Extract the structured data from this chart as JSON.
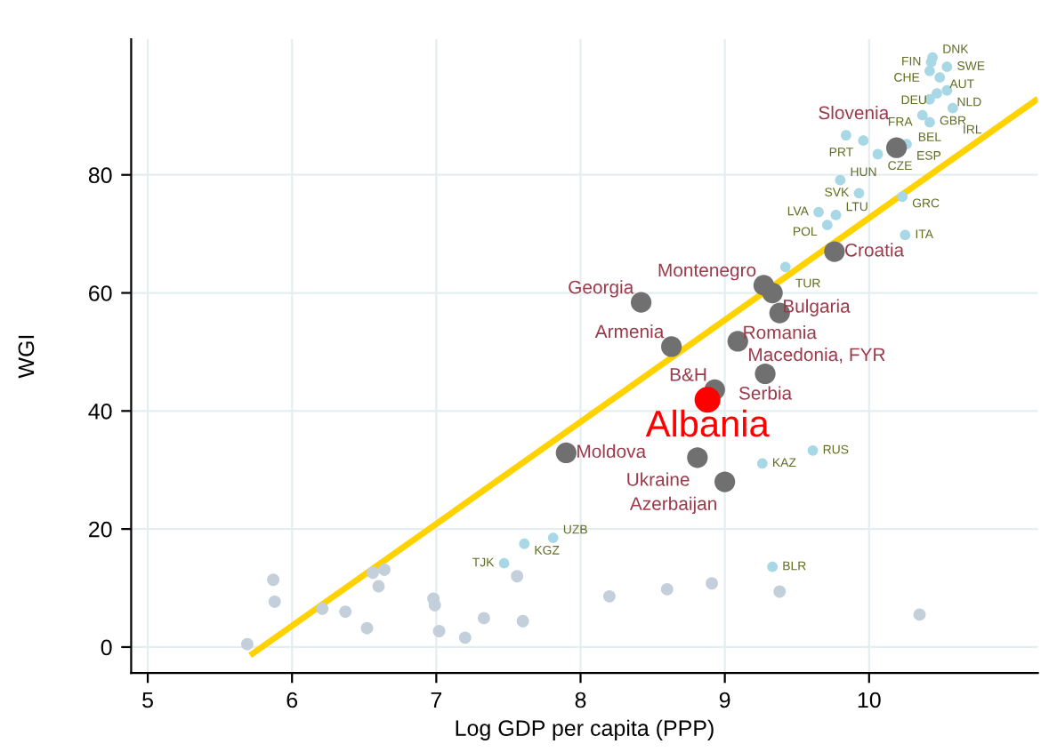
{
  "chart_data": {
    "type": "scatter",
    "xlabel": "Log GDP per capita (PPP)",
    "ylabel": "WGI",
    "xlim": [
      4.885,
      11.17
    ],
    "ylim": [
      -4.4,
      103
    ],
    "xticks": [
      5,
      6,
      7,
      8,
      9,
      10
    ],
    "yticks": [
      0,
      20,
      40,
      60,
      80
    ],
    "grid": true,
    "marker": "circle",
    "series": [
      {
        "color": "#c4cfdc",
        "x": [
          5.69,
          5.87,
          5.88,
          6.21,
          6.37,
          6.52,
          6.56,
          6.64,
          6.6,
          6.98,
          6.99,
          7.02,
          7.2,
          7.33,
          7.56,
          7.6,
          8.2,
          8.6,
          8.91,
          9.38,
          10.35
        ],
        "values": [
          0.5,
          11.4,
          7.7,
          6.5,
          6.0,
          3.2,
          12.6,
          13.1,
          10.3,
          8.2,
          7.1,
          2.7,
          1.6,
          4.9,
          12.0,
          4.4,
          8.6,
          9.8,
          10.8,
          9.4,
          5.5
        ]
      },
      {
        "color": "#a8d8e6",
        "x": [
          10.44,
          10.43,
          10.54,
          10.42,
          10.49,
          10.54,
          10.47,
          10.42,
          10.58,
          10.37,
          10.42,
          9.84,
          9.96,
          10.26,
          10.06,
          9.8,
          9.93,
          10.23,
          9.65,
          9.77,
          9.71,
          10.25,
          9.42,
          9.61,
          9.26,
          7.61,
          7.81,
          7.47,
          9.33
        ],
        "values": [
          99.9,
          99.1,
          98.3,
          97.6,
          96.5,
          94.3,
          93.8,
          92.8,
          91.3,
          90.1,
          88.9,
          86.7,
          85.8,
          85.2,
          83.5,
          79.1,
          76.9,
          76.3,
          73.7,
          73.2,
          71.5,
          69.8,
          64.4,
          33.3,
          31.1,
          17.5,
          18.5,
          14.2,
          13.6
        ],
        "value_labels": [
          "DNK",
          "FIN",
          "SWE",
          "CHE",
          "AUT",
          "NLD",
          "DEU",
          "GBR",
          "IRL",
          "FRA",
          "BEL",
          null,
          "PRT",
          "ESP",
          "CZE",
          "HUN",
          "SVK",
          "GRC",
          "LVA",
          "LTU",
          "POL",
          "ITA",
          "TUR",
          "RUS",
          "KAZ",
          "KGZ",
          "UZB",
          "TJK",
          "BLR"
        ]
      },
      {
        "color": "#707070",
        "x": [
          10.19,
          9.76,
          9.27,
          9.33,
          9.38,
          8.42,
          9.09,
          8.63,
          9.28,
          8.93,
          7.9,
          8.81,
          9.0
        ],
        "values": [
          84.6,
          67.0,
          61.3,
          60.0,
          56.6,
          58.4,
          51.8,
          50.9,
          46.3,
          43.6,
          32.9,
          32.1,
          28.0
        ],
        "value_labels": [
          "Slovenia",
          "Croatia",
          "Montenegro",
          "Bulgaria",
          "Romania",
          "Georgia",
          "Macedonia, FYR",
          "Armenia",
          "Serbia",
          "B&H",
          "Moldova",
          "Ukraine",
          "Azerbaijan"
        ]
      },
      {
        "color": "#ff0000",
        "x": [
          8.88
        ],
        "values": [
          41.9
        ],
        "value_labels": [
          "Albania"
        ]
      },
      {
        "type": "line",
        "marker": "none",
        "color": "#ffd200",
        "x": [
          5.71,
          11.17
        ],
        "values": [
          -1.4,
          92.9
        ]
      }
    ]
  }
}
